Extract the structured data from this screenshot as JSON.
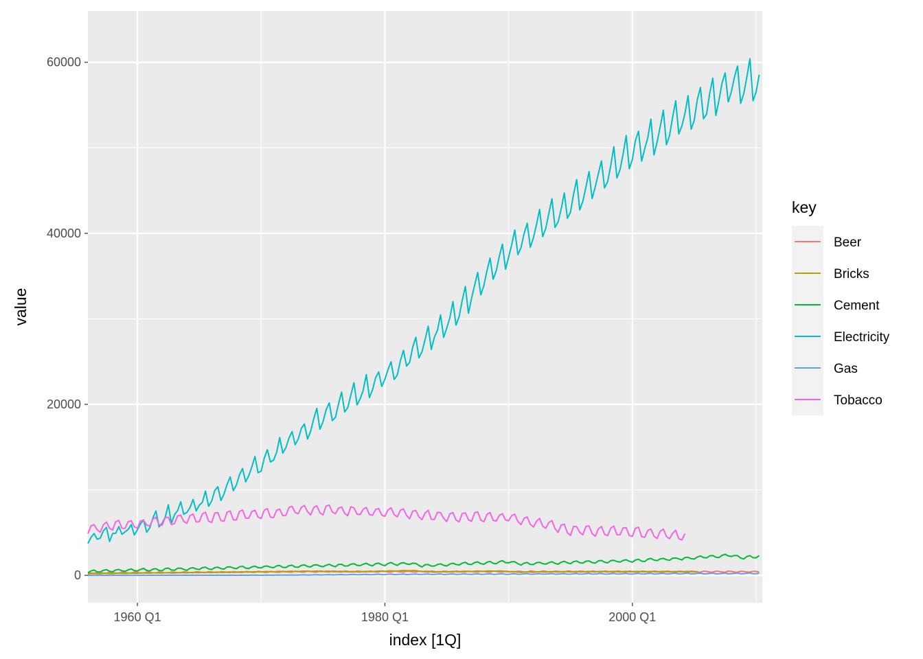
{
  "chart_data": {
    "type": "line",
    "xlabel": "index [1Q]",
    "ylabel": "value",
    "x_range": [
      1956,
      2010.5
    ],
    "y_range": [
      -3200,
      66000
    ],
    "x_ticks": [
      {
        "value": 1960,
        "label": "1960 Q1"
      },
      {
        "value": 1980,
        "label": "1980 Q1"
      },
      {
        "value": 2000,
        "label": "2000 Q1"
      }
    ],
    "x_minor_ticks": [
      1970,
      1990,
      2010
    ],
    "y_ticks": [
      {
        "value": 0,
        "label": "0"
      },
      {
        "value": 20000,
        "label": "20000"
      },
      {
        "value": 40000,
        "label": "40000"
      },
      {
        "value": 60000,
        "label": "60000"
      }
    ],
    "y_minor_ticks": [
      10000,
      30000,
      50000
    ],
    "grid": true,
    "legend": {
      "title": "key",
      "position": "right"
    },
    "series": [
      {
        "name": "Beer",
        "color": "#F8766D",
        "start": 1956.0,
        "end": 2010.25,
        "levels": [
          [
            1956,
            280
          ],
          [
            1965,
            350
          ],
          [
            1975,
            440
          ],
          [
            1985,
            420
          ],
          [
            1995,
            430
          ],
          [
            2010.25,
            410
          ]
        ],
        "seasonal": [
          40,
          -30,
          -40,
          70
        ]
      },
      {
        "name": "Bricks",
        "color": "#B79F00",
        "start": 1956.0,
        "end": 2005.25,
        "levels": [
          [
            1956,
            190
          ],
          [
            1965,
            330
          ],
          [
            1974,
            480
          ],
          [
            1978,
            420
          ],
          [
            1982,
            560
          ],
          [
            1984,
            400
          ],
          [
            1989,
            510
          ],
          [
            1991,
            380
          ],
          [
            1995,
            430
          ],
          [
            2005.25,
            430
          ]
        ],
        "seasonal": [
          -25,
          15,
          25,
          -10
        ]
      },
      {
        "name": "Cement",
        "color": "#00BA38",
        "start": 1956.0,
        "end": 2010.25,
        "levels": [
          [
            1956,
            470
          ],
          [
            1965,
            800
          ],
          [
            1975,
            1130
          ],
          [
            1982,
            1380
          ],
          [
            1983,
            1130
          ],
          [
            1990,
            1600
          ],
          [
            1991,
            1350
          ],
          [
            2000,
            1700
          ],
          [
            2005,
            2050
          ],
          [
            2008,
            2350
          ],
          [
            2009,
            2050
          ],
          [
            2010.25,
            2250
          ]
        ],
        "seasonal": [
          -140,
          70,
          140,
          -70
        ]
      },
      {
        "name": "Electricity",
        "color": "#00BFC4",
        "start": 1956.0,
        "end": 2010.25,
        "levels": [
          [
            1956,
            4200
          ],
          [
            1960,
            5700
          ],
          [
            1965,
            8300
          ],
          [
            1970,
            13000
          ],
          [
            1975,
            18500
          ],
          [
            1980,
            23200
          ],
          [
            1985,
            29500
          ],
          [
            1990,
            37800
          ],
          [
            1995,
            43500
          ],
          [
            2000,
            49700
          ],
          [
            2005,
            54400
          ],
          [
            2008,
            57300
          ],
          [
            2010.25,
            58000
          ]
        ],
        "seasonal": [
          -600,
          400,
          1300,
          -1100
        ]
      },
      {
        "name": "Gas",
        "color": "#619CFF",
        "start": 1956.0,
        "end": 2010.25,
        "levels": [
          [
            1956,
            5
          ],
          [
            1970,
            15
          ],
          [
            1975,
            60
          ],
          [
            1980,
            110
          ],
          [
            1990,
            150
          ],
          [
            2000,
            185
          ],
          [
            2010.25,
            230
          ]
        ],
        "seasonal": [
          -0.15,
          0.1,
          0.25,
          -0.2
        ]
      },
      {
        "name": "Tobacco",
        "color": "#F564E3",
        "start": 1956.0,
        "end": 2004.25,
        "levels": [
          [
            1956,
            5500
          ],
          [
            1960,
            6000
          ],
          [
            1965,
            6700
          ],
          [
            1970,
            7200
          ],
          [
            1974,
            7700
          ],
          [
            1980,
            7400
          ],
          [
            1985,
            6900
          ],
          [
            1990,
            6800
          ],
          [
            1995,
            5300
          ],
          [
            2000,
            5100
          ],
          [
            2004.25,
            4600
          ]
        ],
        "seasonal": [
          -500,
          350,
          500,
          -350
        ]
      }
    ]
  }
}
